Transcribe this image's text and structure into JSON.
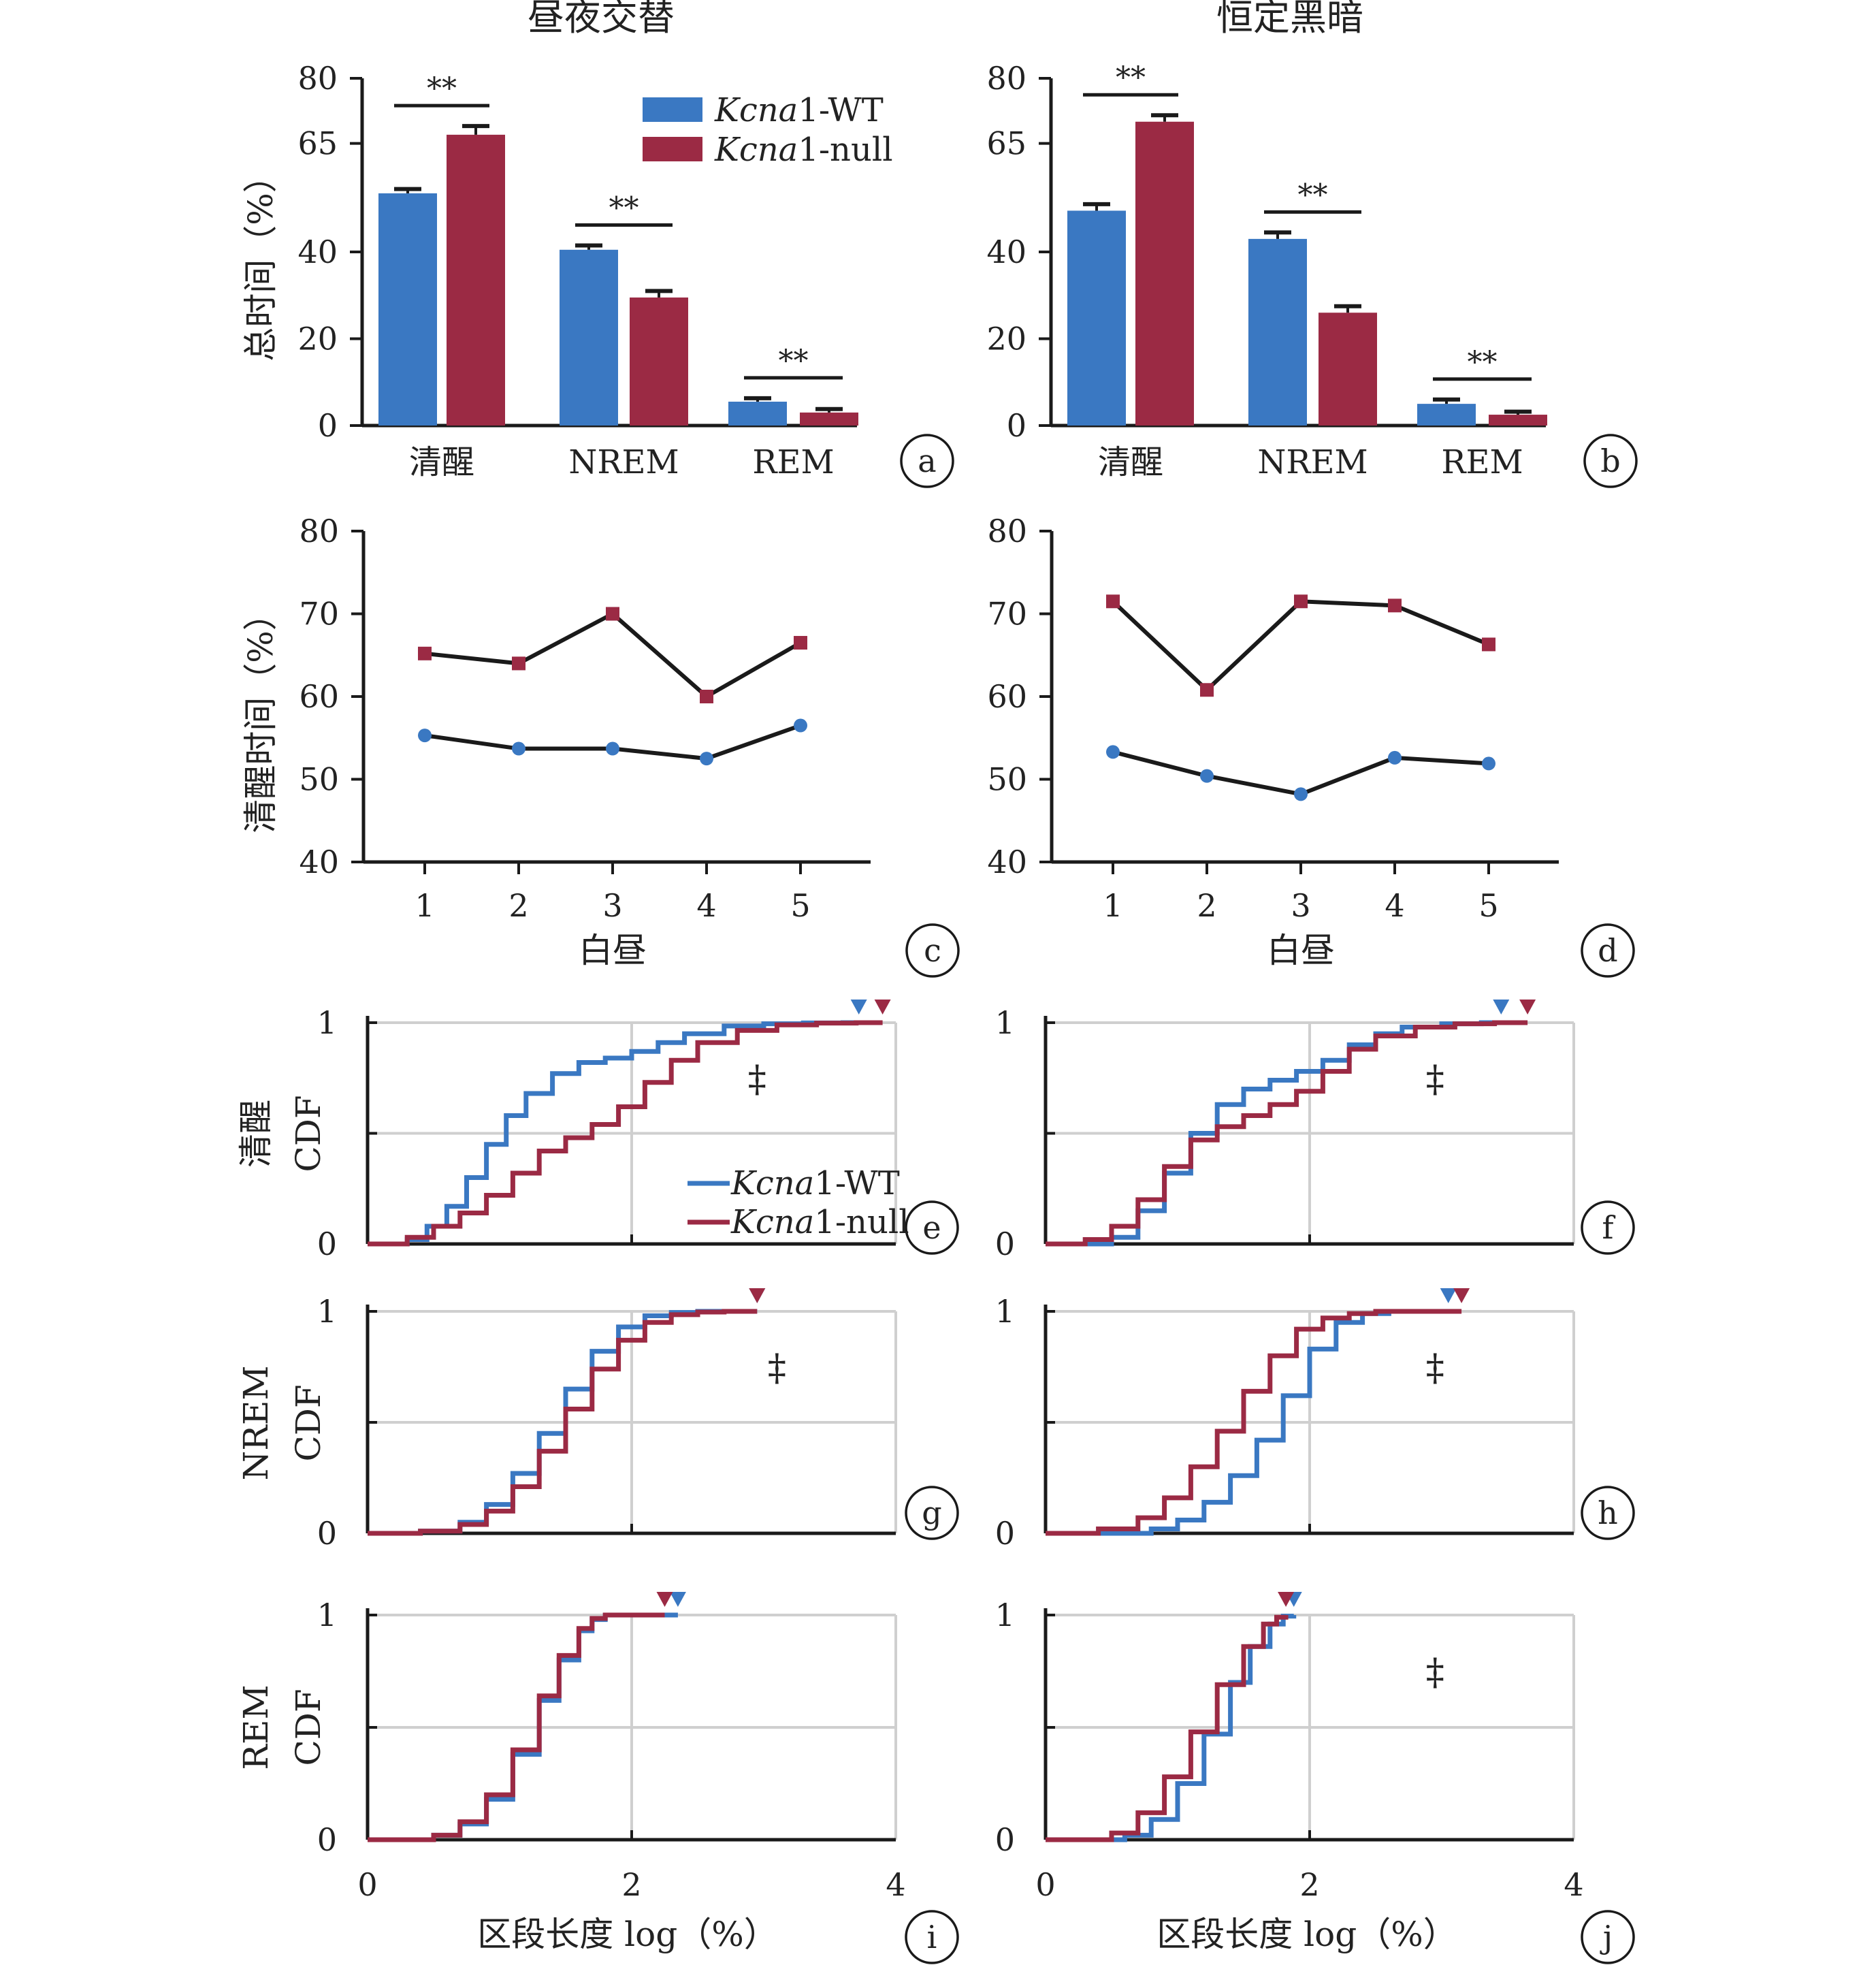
{
  "colors": {
    "wt": "#3a78c2",
    "null": "#9b2a44",
    "axis": "#1a1a1a",
    "grid": "#cfcfcf",
    "line": "#1a1a1a"
  },
  "titles": {
    "left": "昼夜交替",
    "right": "恒定黑暗"
  },
  "legend": {
    "wt_italic": "Kcna",
    "wt_rest": "1-WT",
    "null_italic": "Kcna",
    "null_rest": "1-null"
  },
  "ylabels": {
    "bar": "总时间（%）",
    "line": "清醒时间（%）",
    "cdf_wake_1": "清醒",
    "cdf_wake_2": "CDF",
    "cdf_nrem_1": "NREM",
    "cdf_nrem_2": "CDF",
    "cdf_rem_1": "REM",
    "cdf_rem_2": "CDF"
  },
  "xlabels": {
    "line": "白昼",
    "cdf": "区段长度 log（%）"
  },
  "panel_letters": [
    "a",
    "b",
    "c",
    "d",
    "e",
    "f",
    "g",
    "h",
    "i",
    "j"
  ],
  "sig_marks": {
    "double_star": "**",
    "double_dagger": "‡"
  },
  "chart_data": [
    {
      "panel": "a",
      "type": "bar",
      "categories": [
        "清醒",
        "NREM",
        "REM"
      ],
      "ylim": [
        0,
        80
      ],
      "yticks": [
        0,
        20,
        40,
        65,
        80
      ],
      "series": [
        {
          "name": "Kcna1-WT",
          "values": [
            53.5,
            40.5,
            5.5
          ]
        },
        {
          "name": "Kcna1-null",
          "values": [
            67,
            29.5,
            3
          ]
        }
      ],
      "errors": {
        "wt": [
          1,
          1,
          0.8
        ],
        "null": [
          2,
          1.5,
          0.8
        ]
      },
      "significance": [
        "**",
        "**",
        "**"
      ]
    },
    {
      "panel": "b",
      "type": "bar",
      "categories": [
        "清醒",
        "NREM",
        "REM"
      ],
      "ylim": [
        0,
        80
      ],
      "yticks": [
        0,
        20,
        40,
        65,
        80
      ],
      "series": [
        {
          "name": "Kcna1-WT",
          "values": [
            49.5,
            43,
            5
          ]
        },
        {
          "name": "Kcna1-null",
          "values": [
            70,
            26,
            2.5
          ]
        }
      ],
      "errors": {
        "wt": [
          1.5,
          1.5,
          1
        ],
        "null": [
          1.5,
          1.5,
          0.7
        ]
      },
      "significance": [
        "**",
        "**",
        "**"
      ]
    },
    {
      "panel": "c",
      "type": "line",
      "x": [
        1,
        2,
        3,
        4,
        5
      ],
      "ylim": [
        40,
        80
      ],
      "yticks": [
        40,
        50,
        60,
        70,
        80
      ],
      "series": [
        {
          "name": "Kcna1-null",
          "values": [
            65.2,
            64,
            70,
            60,
            66.5
          ]
        },
        {
          "name": "Kcna1-WT",
          "values": [
            55.3,
            53.7,
            53.7,
            52.5,
            56.5
          ]
        }
      ]
    },
    {
      "panel": "d",
      "type": "line",
      "x": [
        1,
        2,
        3,
        4,
        5
      ],
      "ylim": [
        40,
        80
      ],
      "yticks": [
        40,
        50,
        60,
        70,
        80
      ],
      "series": [
        {
          "name": "Kcna1-null",
          "values": [
            71.5,
            60.8,
            71.5,
            71,
            66.3
          ]
        },
        {
          "name": "Kcna1-WT",
          "values": [
            53.3,
            50.4,
            48.2,
            52.6,
            51.9
          ]
        }
      ]
    },
    {
      "panel": "e",
      "type": "line",
      "xlim": [
        0,
        4
      ],
      "ylim": [
        0,
        1
      ],
      "yticks": [
        0,
        1
      ],
      "series": [
        {
          "name": "Kcna1-WT",
          "x": [
            0,
            0.3,
            0.45,
            0.6,
            0.75,
            0.9,
            1.05,
            1.2,
            1.4,
            1.6,
            1.8,
            2.0,
            2.2,
            2.4,
            2.7,
            3.0,
            3.3,
            3.6,
            3.72
          ],
          "y": [
            0,
            0.02,
            0.08,
            0.17,
            0.3,
            0.45,
            0.58,
            0.68,
            0.77,
            0.82,
            0.84,
            0.87,
            0.91,
            0.95,
            0.985,
            0.995,
            0.999,
            1,
            1
          ]
        },
        {
          "name": "Kcna1-null",
          "x": [
            0,
            0.3,
            0.5,
            0.7,
            0.9,
            1.1,
            1.3,
            1.5,
            1.7,
            1.9,
            2.1,
            2.3,
            2.5,
            2.8,
            3.1,
            3.4,
            3.7,
            3.9
          ],
          "y": [
            0,
            0.03,
            0.08,
            0.14,
            0.22,
            0.32,
            0.42,
            0.48,
            0.54,
            0.62,
            0.73,
            0.83,
            0.91,
            0.965,
            0.99,
            0.998,
            1,
            1
          ]
        }
      ],
      "end_markers": {
        "wt": 3.72,
        "null": 3.9
      },
      "significance": "‡"
    },
    {
      "panel": "f",
      "type": "line",
      "xlim": [
        0,
        4
      ],
      "ylim": [
        0,
        1
      ],
      "yticks": [
        0,
        1
      ],
      "series": [
        {
          "name": "Kcna1-WT",
          "x": [
            0,
            0.3,
            0.5,
            0.7,
            0.9,
            1.1,
            1.3,
            1.5,
            1.7,
            1.9,
            2.1,
            2.3,
            2.5,
            2.7,
            3.0,
            3.3,
            3.45
          ],
          "y": [
            0,
            0,
            0.03,
            0.15,
            0.32,
            0.5,
            0.63,
            0.7,
            0.74,
            0.78,
            0.83,
            0.9,
            0.95,
            0.98,
            0.995,
            1,
            1
          ]
        },
        {
          "name": "Kcna1-null",
          "x": [
            0,
            0.3,
            0.5,
            0.7,
            0.9,
            1.1,
            1.3,
            1.5,
            1.7,
            1.9,
            2.1,
            2.3,
            2.5,
            2.8,
            3.1,
            3.4,
            3.65
          ],
          "y": [
            0,
            0.02,
            0.08,
            0.2,
            0.35,
            0.47,
            0.53,
            0.58,
            0.63,
            0.69,
            0.78,
            0.88,
            0.94,
            0.98,
            0.995,
            1,
            1
          ]
        }
      ],
      "end_markers": {
        "wt": 3.45,
        "null": 3.65
      },
      "significance": "‡"
    },
    {
      "panel": "g",
      "type": "line",
      "xlim": [
        0,
        4
      ],
      "ylim": [
        0,
        1
      ],
      "yticks": [
        0,
        1
      ],
      "series": [
        {
          "name": "Kcna1-WT",
          "x": [
            0,
            0.4,
            0.7,
            0.9,
            1.1,
            1.3,
            1.5,
            1.7,
            1.9,
            2.1,
            2.3,
            2.5,
            2.7,
            2.95
          ],
          "y": [
            0,
            0.01,
            0.05,
            0.13,
            0.27,
            0.45,
            0.65,
            0.82,
            0.93,
            0.98,
            0.995,
            1,
            1,
            1
          ]
        },
        {
          "name": "Kcna1-null",
          "x": [
            0,
            0.4,
            0.7,
            0.9,
            1.1,
            1.3,
            1.5,
            1.7,
            1.9,
            2.1,
            2.3,
            2.5,
            2.7,
            2.95
          ],
          "y": [
            0,
            0.01,
            0.04,
            0.1,
            0.21,
            0.37,
            0.56,
            0.74,
            0.87,
            0.95,
            0.985,
            0.997,
            1,
            1
          ]
        }
      ],
      "end_markers": {
        "wt": 2.95,
        "null": 2.95
      },
      "significance": "‡"
    },
    {
      "panel": "h",
      "type": "line",
      "xlim": [
        0,
        4
      ],
      "ylim": [
        0,
        1
      ],
      "yticks": [
        0,
        1
      ],
      "series": [
        {
          "name": "Kcna1-WT",
          "x": [
            0,
            0.5,
            0.8,
            1.0,
            1.2,
            1.4,
            1.6,
            1.8,
            2.0,
            2.2,
            2.4,
            2.6,
            2.8,
            3.05
          ],
          "y": [
            0,
            0,
            0.02,
            0.06,
            0.14,
            0.26,
            0.42,
            0.62,
            0.83,
            0.95,
            0.99,
            1,
            1,
            1
          ]
        },
        {
          "name": "Kcna1-null",
          "x": [
            0,
            0.4,
            0.7,
            0.9,
            1.1,
            1.3,
            1.5,
            1.7,
            1.9,
            2.1,
            2.3,
            2.5,
            2.8,
            3.15
          ],
          "y": [
            0,
            0.02,
            0.07,
            0.16,
            0.3,
            0.46,
            0.64,
            0.8,
            0.92,
            0.97,
            0.99,
            1,
            1,
            1
          ]
        }
      ],
      "end_markers": {
        "wt": 3.05,
        "null": 3.15
      },
      "significance": "‡"
    },
    {
      "panel": "i",
      "type": "line",
      "xlim": [
        0,
        4
      ],
      "ylim": [
        0,
        1
      ],
      "yticks": [
        0,
        1
      ],
      "series": [
        {
          "name": "Kcna1-WT",
          "x": [
            0,
            0.5,
            0.7,
            0.9,
            1.1,
            1.3,
            1.45,
            1.6,
            1.7,
            1.8,
            2.0,
            2.2,
            2.35
          ],
          "y": [
            0,
            0.02,
            0.07,
            0.18,
            0.38,
            0.62,
            0.8,
            0.93,
            0.98,
            1,
            1,
            1,
            1
          ]
        },
        {
          "name": "Kcna1-null",
          "x": [
            0,
            0.5,
            0.7,
            0.9,
            1.1,
            1.3,
            1.45,
            1.6,
            1.7,
            1.8,
            2.0,
            2.25
          ],
          "y": [
            0,
            0.02,
            0.08,
            0.2,
            0.4,
            0.64,
            0.82,
            0.94,
            0.985,
            1,
            1,
            1
          ]
        }
      ],
      "end_markers": {
        "wt": 2.35,
        "null": 2.25
      }
    },
    {
      "panel": "j",
      "type": "line",
      "xlim": [
        0,
        4
      ],
      "ylim": [
        0,
        1
      ],
      "yticks": [
        0,
        1
      ],
      "series": [
        {
          "name": "Kcna1-WT",
          "x": [
            0,
            0.6,
            0.8,
            1.0,
            1.2,
            1.4,
            1.55,
            1.7,
            1.8,
            1.88
          ],
          "y": [
            0,
            0.02,
            0.09,
            0.25,
            0.47,
            0.7,
            0.86,
            0.96,
            0.995,
            1
          ]
        },
        {
          "name": "Kcna1-null",
          "x": [
            0,
            0.5,
            0.7,
            0.9,
            1.1,
            1.3,
            1.5,
            1.65,
            1.75,
            1.82
          ],
          "y": [
            0,
            0.03,
            0.12,
            0.28,
            0.48,
            0.69,
            0.86,
            0.96,
            0.99,
            1
          ]
        }
      ],
      "end_markers": {
        "wt": 1.88,
        "null": 1.82
      },
      "significance": "‡"
    }
  ],
  "cdf_xticks": [
    "0",
    "2",
    "4"
  ]
}
